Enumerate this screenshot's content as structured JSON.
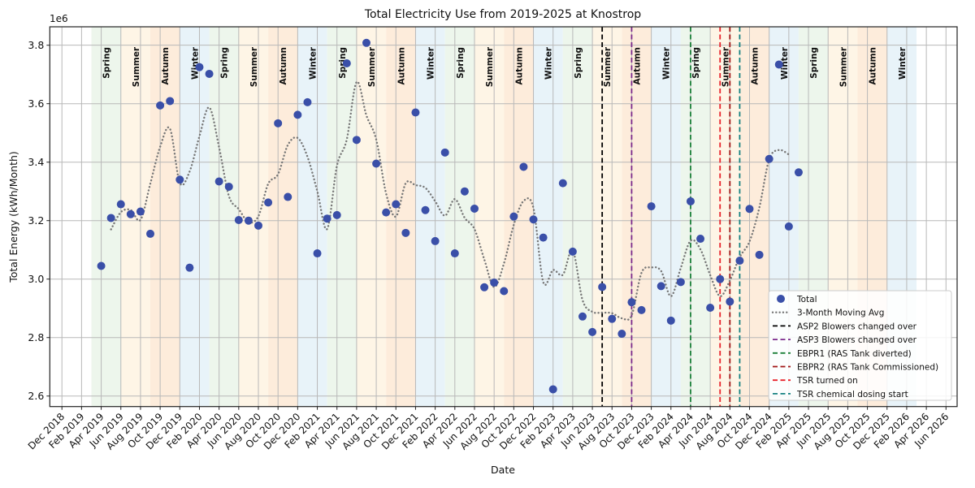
{
  "chart_data": {
    "type": "scatter",
    "title": "Total Electricity Use from 2019-2025 at Knostrop",
    "xlabel": "Date",
    "ylabel": "Total Energy (kWh/Month)",
    "y_offset_label": "1e6",
    "ylim": [
      2.564,
      3.863
    ],
    "xlim": [
      "2018-10-24",
      "2026-07-05"
    ],
    "grid": true,
    "legend_position": "lower-right",
    "y_ticks": [
      2.6,
      2.8,
      3.0,
      3.2,
      3.4,
      3.6,
      3.8
    ],
    "y_tick_labels": [
      "2.6",
      "2.8",
      "3.0",
      "3.2",
      "3.4",
      "3.6",
      "3.8"
    ],
    "x_ticks": [
      "2018-12",
      "2019-02",
      "2019-04",
      "2019-06",
      "2019-08",
      "2019-10",
      "2019-12",
      "2020-02",
      "2020-04",
      "2020-06",
      "2020-08",
      "2020-10",
      "2020-12",
      "2021-02",
      "2021-04",
      "2021-06",
      "2021-08",
      "2021-10",
      "2021-12",
      "2022-02",
      "2022-04",
      "2022-06",
      "2022-08",
      "2022-10",
      "2022-12",
      "2023-02",
      "2023-04",
      "2023-06",
      "2023-08",
      "2023-10",
      "2023-12",
      "2024-02",
      "2024-04",
      "2024-06",
      "2024-08",
      "2024-10",
      "2024-12",
      "2025-02",
      "2025-04",
      "2025-06",
      "2025-08",
      "2025-10",
      "2025-12",
      "2026-02",
      "2026-04",
      "2026-06"
    ],
    "x_tick_labels": [
      "Dec 2018",
      "Feb 2019",
      "Apr 2019",
      "Jun 2019",
      "Aug 2019",
      "Oct 2019",
      "Dec 2019",
      "Feb 2020",
      "Apr 2020",
      "Jun 2020",
      "Aug 2020",
      "Oct 2020",
      "Dec 2020",
      "Feb 2021",
      "Apr 2021",
      "Jun 2021",
      "Aug 2021",
      "Oct 2021",
      "Dec 2021",
      "Feb 2022",
      "Apr 2022",
      "Jun 2022",
      "Aug 2022",
      "Oct 2022",
      "Dec 2022",
      "Feb 2023",
      "Apr 2023",
      "Jun 2023",
      "Aug 2023",
      "Oct 2023",
      "Dec 2023",
      "Feb 2024",
      "Apr 2024",
      "Jun 2024",
      "Aug 2024",
      "Oct 2024",
      "Dec 2024",
      "Feb 2025",
      "Apr 2025",
      "Jun 2025",
      "Aug 2025",
      "Oct 2025",
      "Dec 2025",
      "Feb 2026",
      "Apr 2026",
      "Jun 2026"
    ],
    "series": [
      {
        "name": "Total",
        "type": "scatter",
        "color": "#3a4fa8",
        "x": [
          "2019-04",
          "2019-05",
          "2019-06",
          "2019-07",
          "2019-08",
          "2019-09",
          "2019-10",
          "2019-11",
          "2019-12",
          "2020-01",
          "2020-02",
          "2020-03",
          "2020-04",
          "2020-05",
          "2020-06",
          "2020-07",
          "2020-08",
          "2020-09",
          "2020-10",
          "2020-11",
          "2020-12",
          "2021-01",
          "2021-02",
          "2021-03",
          "2021-04",
          "2021-05",
          "2021-06",
          "2021-07",
          "2021-08",
          "2021-09",
          "2021-10",
          "2021-11",
          "2021-12",
          "2022-01",
          "2022-02",
          "2022-03",
          "2022-04",
          "2022-05",
          "2022-06",
          "2022-07",
          "2022-08",
          "2022-09",
          "2022-10",
          "2022-11",
          "2022-12",
          "2023-01",
          "2023-02",
          "2023-03",
          "2023-04",
          "2023-05",
          "2023-06",
          "2023-07",
          "2023-08",
          "2023-09",
          "2023-10",
          "2023-11",
          "2023-12",
          "2024-01",
          "2024-02",
          "2024-03",
          "2024-04",
          "2024-05",
          "2024-06",
          "2024-07",
          "2024-08",
          "2024-09",
          "2024-10",
          "2024-11",
          "2024-12",
          "2025-01",
          "2025-02",
          "2025-03"
        ],
        "values": [
          3.045,
          3.209,
          3.256,
          3.222,
          3.231,
          3.155,
          3.594,
          3.609,
          3.34,
          3.039,
          3.725,
          3.702,
          3.334,
          3.316,
          3.202,
          3.2,
          3.183,
          3.262,
          3.533,
          3.281,
          3.562,
          3.605,
          3.088,
          3.207,
          3.219,
          3.738,
          3.476,
          3.808,
          3.395,
          3.228,
          3.256,
          3.158,
          3.57,
          3.236,
          3.13,
          3.433,
          3.088,
          3.3,
          3.241,
          2.972,
          2.988,
          2.959,
          3.214,
          3.384,
          3.204,
          3.142,
          2.623,
          3.328,
          3.094,
          2.872,
          2.819,
          2.973,
          2.864,
          2.813,
          2.921,
          2.894,
          3.249,
          2.976,
          2.858,
          2.99,
          3.266,
          3.138,
          2.902,
          3.0,
          2.923,
          3.063,
          3.24,
          3.083,
          3.411,
          3.734,
          3.18,
          3.365
        ]
      },
      {
        "name": "3-Month Moving Avg",
        "type": "line",
        "style": "dotted",
        "color": "#777777",
        "window": 3
      }
    ],
    "events": [
      {
        "name": "ASP2 Blowers changed over",
        "date": "2023-07",
        "color": "#000000"
      },
      {
        "name": "ASP3 Blowers changed over",
        "date": "2023-10",
        "color": "#7b2a8c"
      },
      {
        "name": "EBPR1 (RAS Tank diverted)",
        "date": "2024-04",
        "color": "#1a7f37"
      },
      {
        "name": "EBPR2 (RAS Tank Commissioned)",
        "date": "2024-08",
        "color": "#a01616"
      },
      {
        "name": "TSR turned on",
        "date": "2024-07",
        "color": "#e8222a"
      },
      {
        "name": "TSR chemical dosing start",
        "date": "2024-09",
        "color": "#138080"
      }
    ],
    "legend_order": [
      "Total",
      "3-Month Moving Avg",
      "ASP2 Blowers changed over",
      "ASP3 Blowers changed over",
      "EBPR1 (RAS Tank diverted)",
      "EBPR2 (RAS Tank Commissioned)",
      "TSR turned on",
      "TSR chemical dosing start"
    ],
    "season_colors": {
      "Spring": "#edf6ec",
      "Summer": "#fef5e6",
      "Autumn": "#fdecdb",
      "Winter": "#e8f3f9"
    },
    "seasons": [
      {
        "label": "Spring",
        "start": "2019-03"
      },
      {
        "label": "Summer",
        "start": "2019-06"
      },
      {
        "label": "Autumn",
        "start": "2019-09"
      },
      {
        "label": "Winter",
        "start": "2019-12"
      },
      {
        "label": "Spring",
        "start": "2020-03"
      },
      {
        "label": "Summer",
        "start": "2020-06"
      },
      {
        "label": "Autumn",
        "start": "2020-09"
      },
      {
        "label": "Winter",
        "start": "2020-12"
      },
      {
        "label": "Spring",
        "start": "2021-03"
      },
      {
        "label": "Summer",
        "start": "2021-06"
      },
      {
        "label": "Autumn",
        "start": "2021-09"
      },
      {
        "label": "Winter",
        "start": "2021-12"
      },
      {
        "label": "Spring",
        "start": "2022-03"
      },
      {
        "label": "Summer",
        "start": "2022-06"
      },
      {
        "label": "Autumn",
        "start": "2022-09"
      },
      {
        "label": "Winter",
        "start": "2022-12"
      },
      {
        "label": "Spring",
        "start": "2023-03"
      },
      {
        "label": "Summer",
        "start": "2023-06"
      },
      {
        "label": "Autumn",
        "start": "2023-09"
      },
      {
        "label": "Winter",
        "start": "2023-12"
      },
      {
        "label": "Spring",
        "start": "2024-03"
      },
      {
        "label": "Summer",
        "start": "2024-06"
      },
      {
        "label": "Autumn",
        "start": "2024-09"
      },
      {
        "label": "Winter",
        "start": "2024-12"
      },
      {
        "label": "Spring",
        "start": "2025-03"
      },
      {
        "label": "Summer",
        "start": "2025-06"
      },
      {
        "label": "Autumn",
        "start": "2025-09"
      },
      {
        "label": "Winter",
        "start": "2025-12"
      }
    ]
  }
}
